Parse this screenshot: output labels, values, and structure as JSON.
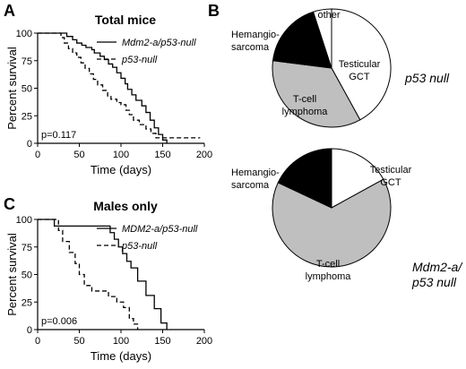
{
  "panels": {
    "A": "A",
    "B": "B",
    "C": "C"
  },
  "chart_data": [
    {
      "id": "A",
      "type": "line",
      "title": "Total mice",
      "xlabel": "Time (days)",
      "ylabel": "Percent survival",
      "xlim": [
        0,
        200
      ],
      "ylim": [
        0,
        100
      ],
      "xticks": [
        "0",
        "50",
        "100",
        "150",
        "200"
      ],
      "yticks": [
        "0",
        "25",
        "50",
        "75",
        "100"
      ],
      "annotation": "p=0.117",
      "series": [
        {
          "name": "Mdm2-a/p53-null",
          "style": "solid",
          "x": [
            0,
            30,
            35,
            42,
            47,
            53,
            58,
            65,
            68,
            75,
            80,
            85,
            90,
            95,
            100,
            105,
            108,
            113,
            118,
            125,
            130,
            135,
            140,
            145,
            150,
            155
          ],
          "y": [
            100,
            100,
            97,
            94,
            91,
            89,
            87,
            85,
            82,
            79,
            76,
            72,
            69,
            64,
            59,
            54,
            49,
            44,
            39,
            34,
            28,
            21,
            14,
            8,
            3,
            0
          ]
        },
        {
          "name": "p53-null",
          "style": "dashed",
          "x": [
            0,
            22,
            28,
            32,
            37,
            42,
            47,
            52,
            57,
            62,
            67,
            72,
            78,
            84,
            88,
            95,
            100,
            106,
            110,
            115,
            122,
            130,
            136,
            142,
            160,
            195
          ],
          "y": [
            100,
            100,
            96,
            91,
            86,
            82,
            78,
            73,
            68,
            63,
            58,
            53,
            48,
            43,
            40,
            37,
            35,
            30,
            26,
            21,
            17,
            13,
            9,
            5,
            5,
            5
          ]
        }
      ]
    },
    {
      "id": "C",
      "type": "line",
      "title": "Males only",
      "xlabel": "Time (days)",
      "ylabel": "Percent survival",
      "xlim": [
        0,
        200
      ],
      "ylim": [
        0,
        100
      ],
      "xticks": [
        "0",
        "50",
        "100",
        "150",
        "200"
      ],
      "yticks": [
        "0",
        "25",
        "50",
        "75",
        "100"
      ],
      "annotation": "p=0.006",
      "series": [
        {
          "name": "MDM2-a/p53-null",
          "style": "solid",
          "x": [
            0,
            20,
            80,
            87,
            92,
            97,
            102,
            107,
            112,
            120,
            130,
            140,
            148,
            155
          ],
          "y": [
            100,
            94,
            94,
            88,
            82,
            75,
            69,
            62,
            56,
            44,
            31,
            19,
            6,
            0
          ]
        },
        {
          "name": "p53-null",
          "style": "dashed",
          "x": [
            0,
            20,
            25,
            30,
            38,
            45,
            50,
            56,
            65,
            75,
            85,
            95,
            103,
            110,
            115,
            120
          ],
          "y": [
            100,
            100,
            90,
            80,
            70,
            60,
            50,
            40,
            35,
            35,
            30,
            25,
            20,
            10,
            5,
            0
          ]
        }
      ]
    },
    {
      "id": "B1",
      "type": "pie",
      "title": "p53 null",
      "slices": [
        {
          "label": "Testicular GCT",
          "value": 42,
          "color": "#ffffff"
        },
        {
          "label": "T-cell lymphoma",
          "value": 35,
          "color": "#bfbfbf"
        },
        {
          "label": "Hemangio-sarcoma",
          "value": 18,
          "color": "#000000"
        },
        {
          "label": "other",
          "value": 5,
          "color": "#ffffff"
        }
      ]
    },
    {
      "id": "B2",
      "type": "pie",
      "title": "Mdm2-a/ p53 null",
      "slices": [
        {
          "label": "Testicular GCT",
          "value": 17,
          "color": "#ffffff"
        },
        {
          "label": "T-cell lymphoma",
          "value": 65,
          "color": "#bfbfbf"
        },
        {
          "label": "Hemangio-sarcoma",
          "value": 18,
          "color": "#000000"
        }
      ]
    }
  ],
  "pie_labels": {
    "b1_other": "other",
    "b1_hem_1": "Hemangio-",
    "b1_hem_2": "sarcoma",
    "b1_test_1": "Testicular",
    "b1_test_2": "GCT",
    "b1_tcell_1": "T-cell",
    "b1_tcell_2": "lymphoma",
    "b1_title": "p53 null",
    "b2_hem_1": "Hemangio-",
    "b2_hem_2": "sarcoma",
    "b2_test_1": "Testicular",
    "b2_test_2": "GCT",
    "b2_tcell_1": "T-cell",
    "b2_tcell_2": "lymphoma",
    "b2_title_1": "Mdm2-a/",
    "b2_title_2": "p53 null"
  }
}
